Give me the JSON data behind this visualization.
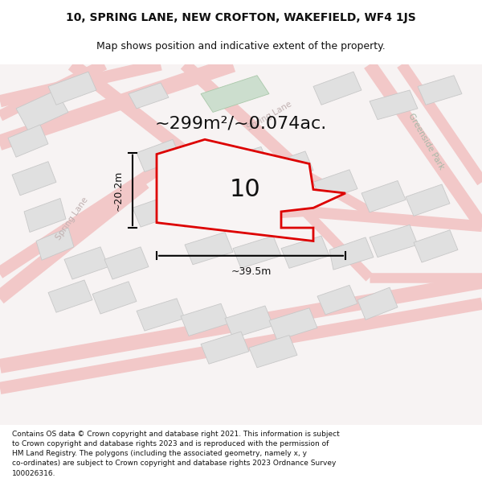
{
  "title_line1": "10, SPRING LANE, NEW CROFTON, WAKEFIELD, WF4 1JS",
  "title_line2": "Map shows position and indicative extent of the property.",
  "footer_text": "Contains OS data © Crown copyright and database right 2021. This information is subject to Crown copyright and database rights 2023 and is reproduced with the permission of HM Land Registry. The polygons (including the associated geometry, namely x, y co-ordinates) are subject to Crown copyright and database rights 2023 Ordnance Survey 100026316.",
  "area_label": "~299m²/~0.074ac.",
  "width_label": "~39.5m",
  "height_label": "~20.2m",
  "plot_number": "10",
  "map_bg": "#f7f3f3",
  "road_color": "#f2c8c8",
  "building_fill": "#e0e0e0",
  "building_stroke": "#c8c8c8",
  "highlight_fill": "#ccdece",
  "highlight_stroke": "#aac8aa",
  "plot_edge": "#dd0000",
  "plot_fill": "#f8f4f4",
  "text_dark": "#111111",
  "road_lbl": "#c0b0b0",
  "road_lbl2": "#a8b8a8",
  "dim_color": "#111111",
  "title_fontsize": 10,
  "subtitle_fontsize": 9,
  "footer_fontsize": 6.5,
  "area_fontsize": 16,
  "dim_fontsize": 9,
  "plot_num_fontsize": 22,
  "road_lbl_fontsize": 7.5
}
